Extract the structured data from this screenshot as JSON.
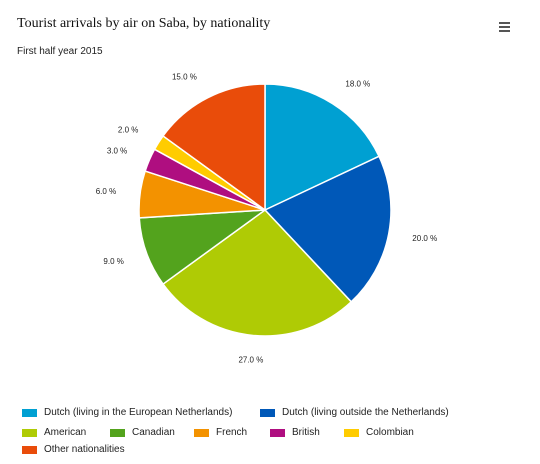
{
  "chart_data": {
    "type": "pie",
    "title": "Tourist arrivals by air on Saba, by nationality",
    "subtitle": "First half year 2015",
    "legend_position": "bottom",
    "slices": [
      {
        "name": "Dutch (living in the European Netherlands)",
        "value": 18.0,
        "label": "18.0 %",
        "color": "#00a0d2"
      },
      {
        "name": "Dutch (living outside the Netherlands)",
        "value": 20.0,
        "label": "20.0 %",
        "color": "#0058b8"
      },
      {
        "name": "American",
        "value": 27.0,
        "label": "27.0 %",
        "color": "#afcb05"
      },
      {
        "name": "Canadian",
        "value": 9.0,
        "label": "9.0 %",
        "color": "#53a31d"
      },
      {
        "name": "French",
        "value": 6.0,
        "label": "6.0 %",
        "color": "#f39200"
      },
      {
        "name": "British",
        "value": 3.0,
        "label": "3.0 %",
        "color": "#af0e80"
      },
      {
        "name": "Colombian",
        "value": 2.0,
        "label": "2.0 %",
        "color": "#ffcc00"
      },
      {
        "name": "Other nationalities",
        "value": 15.0,
        "label": "15.0 %",
        "color": "#e94c0a"
      }
    ]
  },
  "menu_icon": "hamburger-menu-icon"
}
